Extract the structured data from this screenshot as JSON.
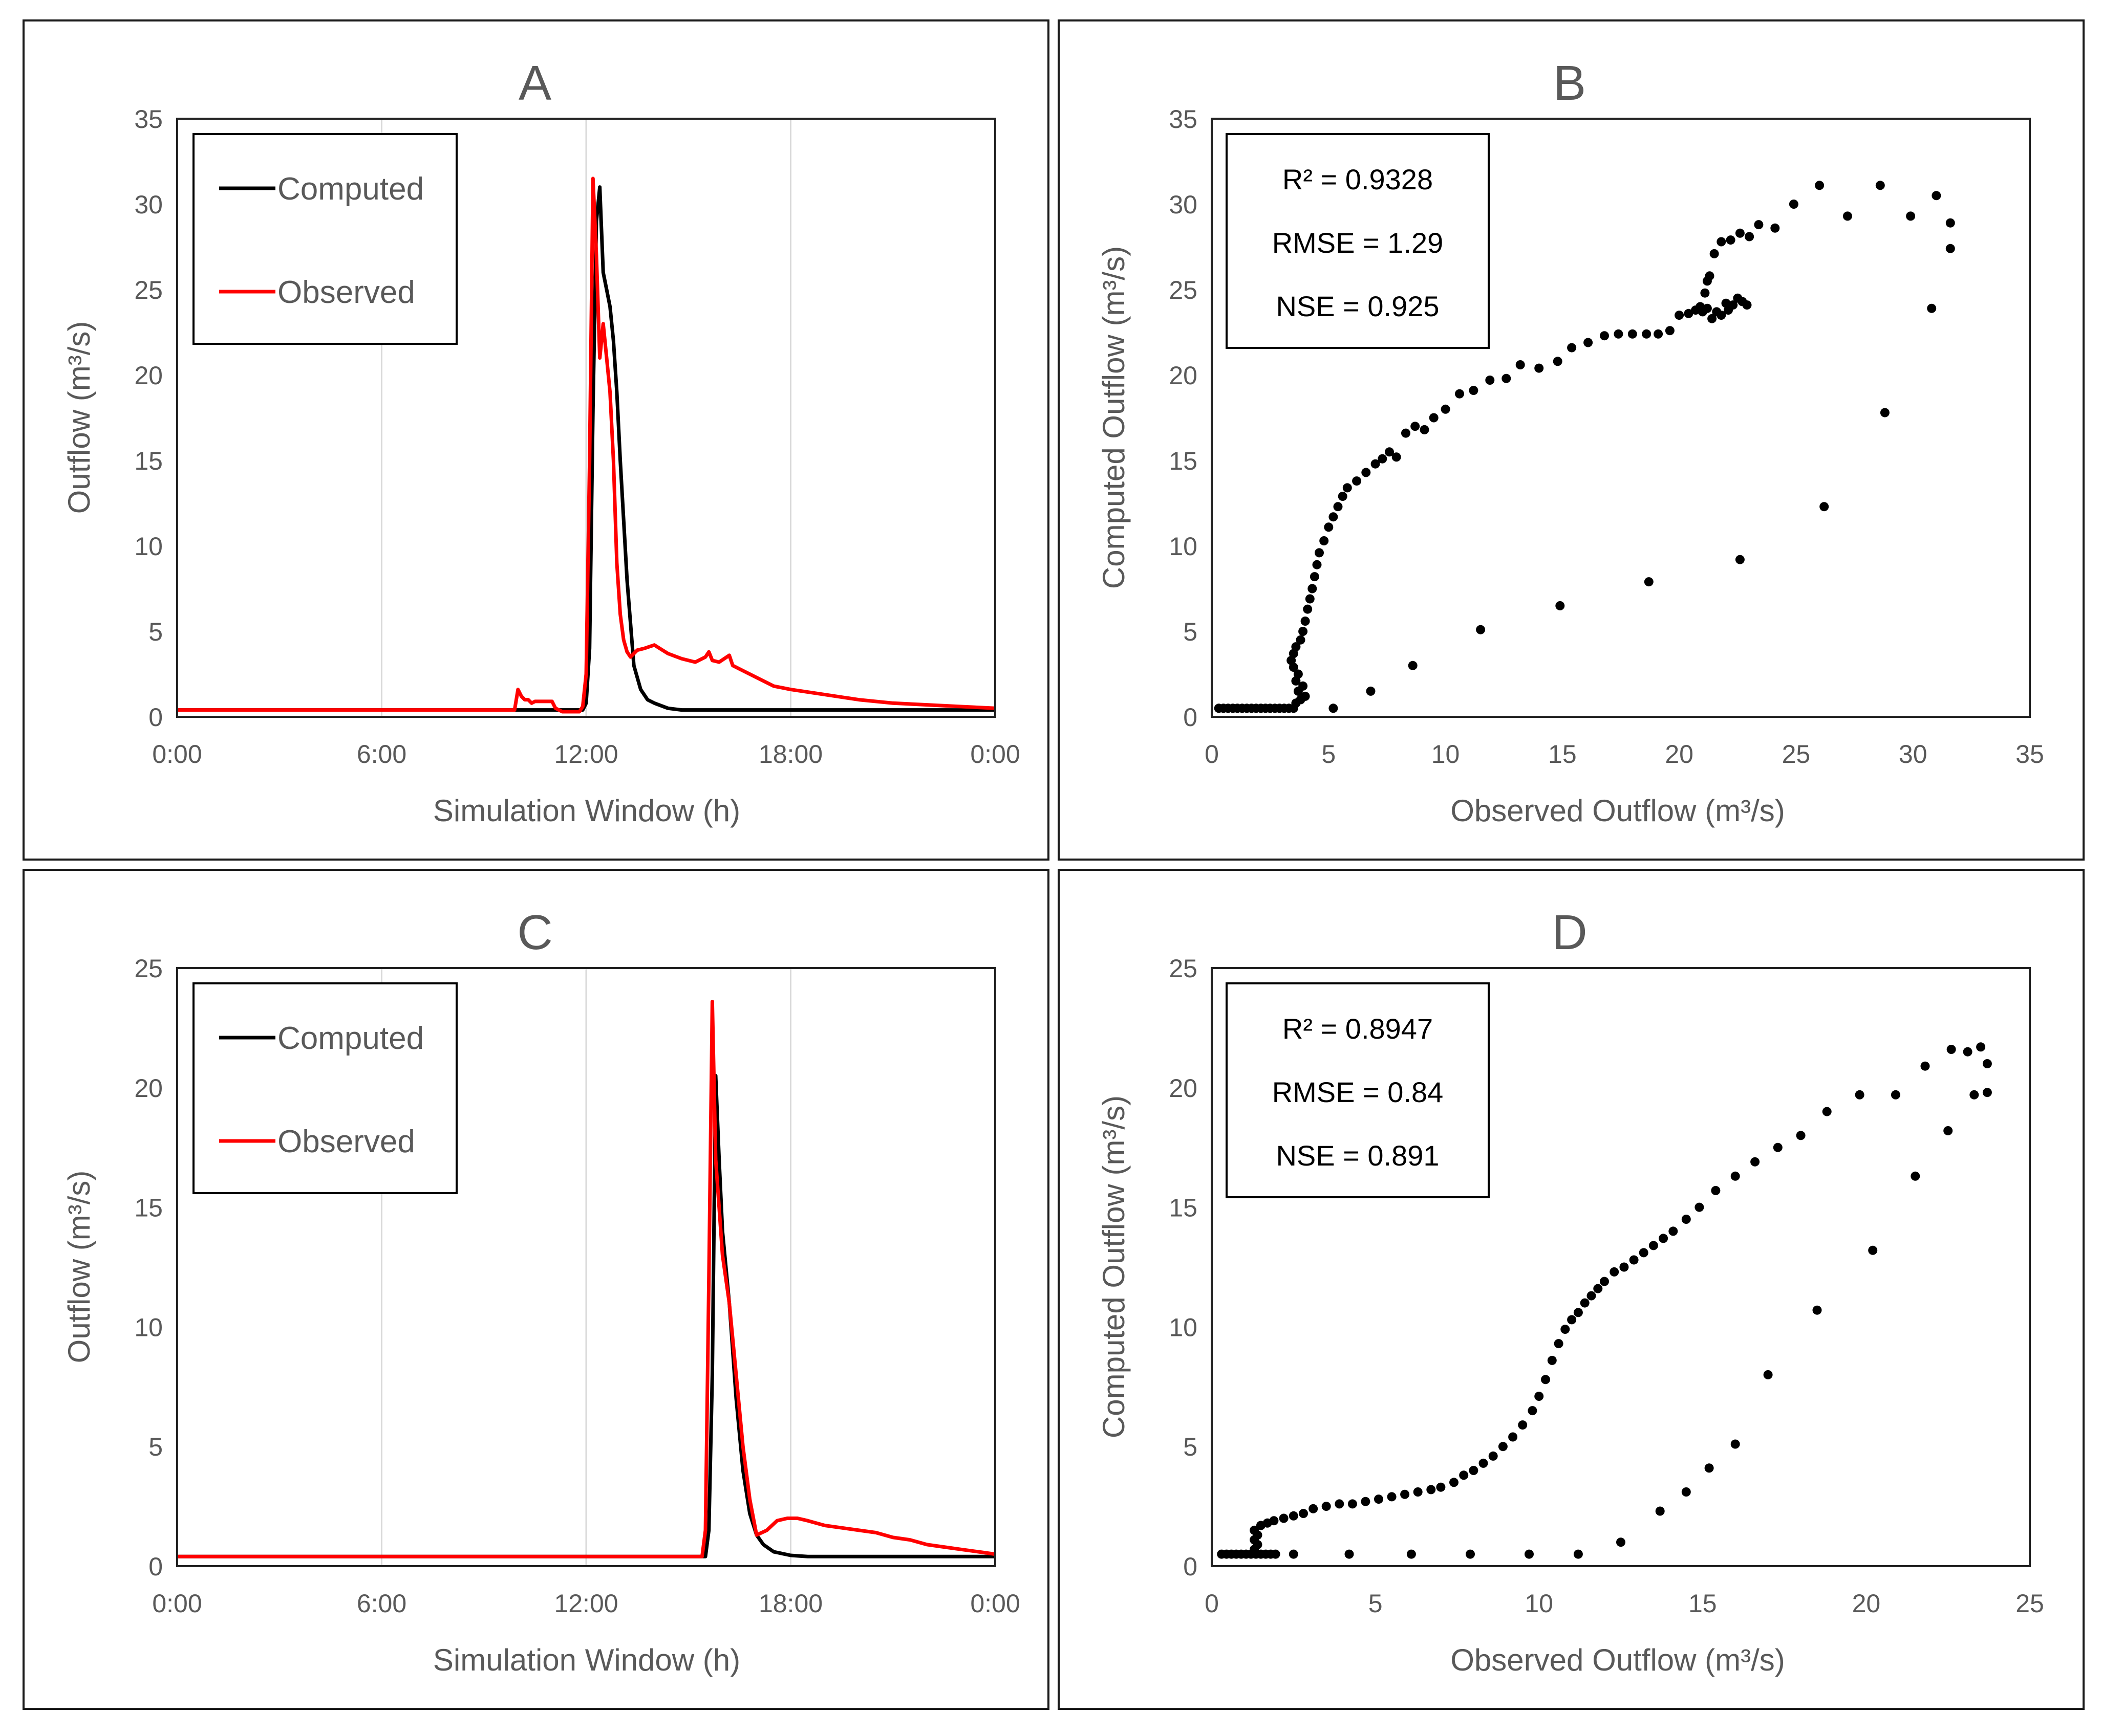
{
  "chart_data": [
    {
      "id": "A",
      "type": "line",
      "title": "A",
      "xlabel": "Simulation Window (h)",
      "ylabel": "Outflow (m³/s)",
      "xlim": [
        0,
        24
      ],
      "ylim": [
        0,
        35
      ],
      "x_ticks": [
        0,
        6,
        12,
        18,
        24
      ],
      "x_tick_labels": [
        "0:00",
        "6:00",
        "12:00",
        "18:00",
        "0:00"
      ],
      "y_ticks": [
        0,
        5,
        10,
        15,
        20,
        25,
        30,
        35
      ],
      "y_tick_labels": [
        "0",
        "5",
        "10",
        "15",
        "20",
        "25",
        "30",
        "35"
      ],
      "legend": "top-left",
      "series": [
        {
          "name": "Computed",
          "color": "#000000",
          "x": [
            0,
            11.9,
            12.0,
            12.1,
            12.2,
            12.3,
            12.4,
            12.5,
            12.6,
            12.7,
            12.8,
            12.9,
            13.0,
            13.2,
            13.4,
            13.6,
            13.8,
            14.0,
            14.4,
            14.8,
            15.2,
            15.6,
            24
          ],
          "y": [
            0.4,
            0.4,
            0.8,
            4,
            18,
            29,
            31,
            26,
            25,
            24,
            22,
            19,
            15,
            8,
            3,
            1.6,
            1.0,
            0.8,
            0.5,
            0.4,
            0.4,
            0.4,
            0.4
          ]
        },
        {
          "name": "Observed",
          "color": "#ff0000",
          "x": [
            0,
            9.9,
            10.0,
            10.1,
            10.2,
            10.3,
            10.4,
            10.5,
            11.0,
            11.1,
            11.3,
            11.8,
            11.9,
            12.0,
            12.1,
            12.2,
            12.3,
            12.4,
            12.5,
            12.6,
            12.7,
            12.8,
            12.9,
            13.0,
            13.1,
            13.2,
            13.3,
            13.5,
            13.7,
            14.0,
            14.4,
            14.8,
            15.2,
            15.5,
            15.6,
            15.7,
            15.9,
            16.2,
            16.3,
            16.5,
            17.0,
            17.5,
            18.0,
            19.0,
            20.0,
            21.0,
            22.0,
            23.0,
            24.0
          ],
          "y": [
            0.4,
            0.4,
            1.6,
            1.2,
            1.0,
            1.0,
            0.8,
            0.9,
            0.9,
            0.5,
            0.3,
            0.3,
            0.6,
            2.5,
            15,
            31.5,
            27,
            21,
            23,
            21,
            19,
            15,
            9,
            6,
            4.5,
            3.8,
            3.5,
            3.9,
            4.0,
            4.2,
            3.7,
            3.4,
            3.2,
            3.5,
            3.8,
            3.3,
            3.2,
            3.6,
            3.0,
            2.8,
            2.3,
            1.8,
            1.6,
            1.3,
            1.0,
            0.8,
            0.7,
            0.6,
            0.5
          ]
        }
      ]
    },
    {
      "id": "B",
      "type": "scatter",
      "title": "B",
      "xlabel": "Observed Outflow (m³/s)",
      "ylabel": "Computed Outflow (m³/s)",
      "xlim": [
        0,
        35
      ],
      "ylim": [
        0,
        35
      ],
      "x_ticks": [
        0,
        5,
        10,
        15,
        20,
        25,
        30,
        35
      ],
      "x_tick_labels": [
        "0",
        "5",
        "10",
        "15",
        "20",
        "25",
        "30",
        "35"
      ],
      "y_ticks": [
        0,
        5,
        10,
        15,
        20,
        25,
        30,
        35
      ],
      "y_tick_labels": [
        "0",
        "5",
        "10",
        "15",
        "20",
        "25",
        "30",
        "35"
      ],
      "stats": [
        "R² = 0.9328",
        "RMSE = 1.29",
        "NSE = 0.925"
      ],
      "points": [
        [
          0.3,
          0.5
        ],
        [
          0.5,
          0.5
        ],
        [
          0.7,
          0.5
        ],
        [
          0.9,
          0.5
        ],
        [
          1.1,
          0.5
        ],
        [
          1.3,
          0.5
        ],
        [
          1.5,
          0.5
        ],
        [
          1.7,
          0.5
        ],
        [
          1.9,
          0.5
        ],
        [
          2.1,
          0.5
        ],
        [
          2.3,
          0.5
        ],
        [
          2.5,
          0.5
        ],
        [
          2.7,
          0.5
        ],
        [
          2.9,
          0.5
        ],
        [
          3.1,
          0.5
        ],
        [
          3.3,
          0.5
        ],
        [
          3.5,
          0.5
        ],
        [
          3.6,
          0.8
        ],
        [
          3.8,
          1.0
        ],
        [
          4.0,
          1.2
        ],
        [
          3.7,
          1.5
        ],
        [
          3.9,
          1.8
        ],
        [
          3.6,
          2.1
        ],
        [
          3.7,
          2.5
        ],
        [
          3.5,
          2.9
        ],
        [
          3.4,
          3.3
        ],
        [
          3.5,
          3.7
        ],
        [
          3.6,
          4.1
        ],
        [
          3.8,
          4.5
        ],
        [
          3.9,
          5.0
        ],
        [
          4.0,
          5.6
        ],
        [
          4.1,
          6.3
        ],
        [
          4.2,
          6.9
        ],
        [
          4.3,
          7.5
        ],
        [
          4.4,
          8.2
        ],
        [
          4.5,
          8.9
        ],
        [
          4.6,
          9.6
        ],
        [
          4.8,
          10.3
        ],
        [
          5.0,
          11.1
        ],
        [
          5.2,
          11.7
        ],
        [
          5.4,
          12.3
        ],
        [
          5.6,
          12.9
        ],
        [
          5.8,
          13.4
        ],
        [
          6.2,
          13.8
        ],
        [
          6.6,
          14.3
        ],
        [
          7.0,
          14.8
        ],
        [
          7.3,
          15.1
        ],
        [
          7.6,
          15.5
        ],
        [
          7.9,
          15.2
        ],
        [
          8.3,
          16.6
        ],
        [
          8.7,
          17.0
        ],
        [
          9.1,
          16.8
        ],
        [
          9.5,
          17.5
        ],
        [
          10.0,
          18.0
        ],
        [
          10.6,
          18.9
        ],
        [
          11.2,
          19.1
        ],
        [
          11.9,
          19.7
        ],
        [
          12.6,
          19.8
        ],
        [
          13.2,
          20.6
        ],
        [
          14.0,
          20.4
        ],
        [
          14.8,
          20.8
        ],
        [
          15.4,
          21.6
        ],
        [
          16.1,
          21.9
        ],
        [
          16.8,
          22.3
        ],
        [
          17.4,
          22.4
        ],
        [
          18.0,
          22.4
        ],
        [
          18.6,
          22.4
        ],
        [
          19.1,
          22.4
        ],
        [
          19.6,
          22.6
        ],
        [
          20.0,
          23.5
        ],
        [
          20.4,
          23.6
        ],
        [
          20.7,
          23.8
        ],
        [
          20.9,
          24.0
        ],
        [
          21.0,
          23.7
        ],
        [
          21.2,
          23.9
        ],
        [
          21.4,
          23.3
        ],
        [
          21.6,
          23.7
        ],
        [
          21.8,
          23.5
        ],
        [
          22.0,
          24.2
        ],
        [
          22.1,
          23.8
        ],
        [
          22.3,
          24.1
        ],
        [
          22.5,
          24.5
        ],
        [
          22.7,
          24.3
        ],
        [
          22.9,
          24.1
        ],
        [
          21.1,
          24.8
        ],
        [
          21.2,
          25.5
        ],
        [
          21.3,
          25.8
        ],
        [
          21.5,
          27.1
        ],
        [
          21.8,
          27.8
        ],
        [
          22.2,
          27.9
        ],
        [
          22.6,
          28.3
        ],
        [
          23.0,
          28.1
        ],
        [
          23.4,
          28.8
        ],
        [
          24.1,
          28.6
        ],
        [
          24.9,
          30.0
        ],
        [
          26.0,
          31.1
        ],
        [
          27.2,
          29.3
        ],
        [
          28.6,
          31.1
        ],
        [
          29.9,
          29.3
        ],
        [
          31.0,
          30.5
        ],
        [
          31.6,
          28.9
        ],
        [
          31.6,
          27.4
        ],
        [
          30.8,
          23.9
        ],
        [
          28.8,
          17.8
        ],
        [
          26.2,
          12.3
        ],
        [
          22.6,
          9.2
        ],
        [
          18.7,
          7.9
        ],
        [
          14.9,
          6.5
        ],
        [
          11.5,
          5.1
        ],
        [
          8.6,
          3.0
        ],
        [
          6.8,
          1.5
        ],
        [
          5.2,
          0.5
        ]
      ]
    },
    {
      "id": "C",
      "type": "line",
      "title": "C",
      "xlabel": "Simulation Window (h)",
      "ylabel": "Outflow (m³/s)",
      "xlim": [
        0,
        24
      ],
      "ylim": [
        0,
        25
      ],
      "x_ticks": [
        0,
        6,
        12,
        18,
        24
      ],
      "x_tick_labels": [
        "0:00",
        "6:00",
        "12:00",
        "18:00",
        "0:00"
      ],
      "y_ticks": [
        0,
        5,
        10,
        15,
        20,
        25
      ],
      "y_tick_labels": [
        "0",
        "5",
        "10",
        "15",
        "20",
        "25"
      ],
      "legend": "top-left",
      "series": [
        {
          "name": "Computed",
          "color": "#000000",
          "x": [
            0,
            15.5,
            15.6,
            15.7,
            15.8,
            15.9,
            16.0,
            16.2,
            16.4,
            16.6,
            16.8,
            17.0,
            17.2,
            17.5,
            18.0,
            18.5,
            24
          ],
          "y": [
            0.4,
            0.4,
            1.5,
            8,
            20.5,
            17,
            14,
            11,
            7,
            4,
            2.2,
            1.3,
            0.9,
            0.6,
            0.45,
            0.4,
            0.4
          ]
        },
        {
          "name": "Observed",
          "color": "#ff0000",
          "x": [
            0,
            15.4,
            15.5,
            15.6,
            15.7,
            15.8,
            15.9,
            16.0,
            16.2,
            16.4,
            16.6,
            16.8,
            17.0,
            17.3,
            17.6,
            17.9,
            18.2,
            18.5,
            19.0,
            19.5,
            20.0,
            20.5,
            21.0,
            21.5,
            22.0,
            22.5,
            23.0,
            23.5,
            24.0
          ],
          "y": [
            0.4,
            0.4,
            1.5,
            12,
            23.6,
            17,
            15,
            13,
            11,
            8,
            5,
            2.8,
            1.3,
            1.5,
            1.9,
            2.0,
            2.0,
            1.9,
            1.7,
            1.6,
            1.5,
            1.4,
            1.2,
            1.1,
            0.9,
            0.8,
            0.7,
            0.6,
            0.5
          ]
        }
      ]
    },
    {
      "id": "D",
      "type": "scatter",
      "title": "D",
      "xlabel": "Observed Outflow (m³/s)",
      "ylabel": "Computed Outflow (m³/s)",
      "xlim": [
        0,
        25
      ],
      "ylim": [
        0,
        25
      ],
      "x_ticks": [
        0,
        5,
        10,
        15,
        20,
        25
      ],
      "x_tick_labels": [
        "0",
        "5",
        "10",
        "15",
        "20",
        "25"
      ],
      "y_ticks": [
        0,
        5,
        10,
        15,
        20,
        25
      ],
      "y_tick_labels": [
        "0",
        "5",
        "10",
        "15",
        "20",
        "25"
      ],
      "stats": [
        "R² = 0.8947",
        "RMSE = 0.84",
        "NSE = 0.891"
      ],
      "points": [
        [
          0.3,
          0.5
        ],
        [
          0.45,
          0.5
        ],
        [
          0.6,
          0.5
        ],
        [
          0.75,
          0.5
        ],
        [
          0.9,
          0.5
        ],
        [
          1.05,
          0.5
        ],
        [
          1.2,
          0.5
        ],
        [
          1.35,
          0.5
        ],
        [
          1.5,
          0.5
        ],
        [
          1.65,
          0.5
        ],
        [
          1.8,
          0.5
        ],
        [
          1.95,
          0.5
        ],
        [
          1.3,
          0.7
        ],
        [
          1.4,
          0.9
        ],
        [
          1.3,
          1.1
        ],
        [
          1.4,
          1.3
        ],
        [
          1.3,
          1.5
        ],
        [
          1.5,
          1.7
        ],
        [
          1.7,
          1.8
        ],
        [
          1.9,
          1.9
        ],
        [
          2.2,
          2.0
        ],
        [
          2.5,
          2.1
        ],
        [
          2.8,
          2.2
        ],
        [
          3.1,
          2.4
        ],
        [
          3.5,
          2.5
        ],
        [
          3.9,
          2.6
        ],
        [
          4.3,
          2.6
        ],
        [
          4.7,
          2.7
        ],
        [
          5.1,
          2.8
        ],
        [
          5.5,
          2.9
        ],
        [
          5.9,
          3.0
        ],
        [
          6.3,
          3.1
        ],
        [
          6.7,
          3.2
        ],
        [
          7.0,
          3.3
        ],
        [
          7.4,
          3.5
        ],
        [
          7.7,
          3.8
        ],
        [
          8.0,
          4.0
        ],
        [
          8.3,
          4.3
        ],
        [
          8.6,
          4.6
        ],
        [
          8.9,
          5.0
        ],
        [
          9.2,
          5.4
        ],
        [
          9.5,
          5.9
        ],
        [
          9.8,
          6.5
        ],
        [
          10.0,
          7.1
        ],
        [
          10.2,
          7.8
        ],
        [
          10.4,
          8.6
        ],
        [
          10.6,
          9.3
        ],
        [
          10.8,
          9.9
        ],
        [
          11.0,
          10.3
        ],
        [
          11.2,
          10.6
        ],
        [
          11.4,
          11.0
        ],
        [
          11.6,
          11.3
        ],
        [
          11.8,
          11.6
        ],
        [
          12.0,
          11.9
        ],
        [
          12.3,
          12.3
        ],
        [
          12.6,
          12.5
        ],
        [
          12.9,
          12.8
        ],
        [
          13.2,
          13.1
        ],
        [
          13.5,
          13.4
        ],
        [
          13.8,
          13.7
        ],
        [
          14.1,
          14.0
        ],
        [
          14.5,
          14.5
        ],
        [
          14.9,
          15.0
        ],
        [
          15.4,
          15.7
        ],
        [
          16.0,
          16.3
        ],
        [
          16.6,
          16.9
        ],
        [
          17.3,
          17.5
        ],
        [
          18.0,
          18.0
        ],
        [
          18.8,
          19.0
        ],
        [
          19.8,
          19.7
        ],
        [
          20.9,
          19.7
        ],
        [
          21.8,
          20.9
        ],
        [
          22.6,
          21.6
        ],
        [
          23.1,
          21.5
        ],
        [
          23.5,
          21.7
        ],
        [
          23.7,
          21.0
        ],
        [
          23.7,
          19.8
        ],
        [
          23.3,
          19.7
        ],
        [
          22.5,
          18.2
        ],
        [
          21.5,
          16.3
        ],
        [
          20.2,
          13.2
        ],
        [
          18.5,
          10.7
        ],
        [
          17.0,
          8.0
        ],
        [
          16.0,
          5.1
        ],
        [
          15.2,
          4.1
        ],
        [
          14.5,
          3.1
        ],
        [
          13.7,
          2.3
        ],
        [
          12.5,
          1.0
        ],
        [
          11.2,
          0.5
        ],
        [
          9.7,
          0.5
        ],
        [
          7.9,
          0.5
        ],
        [
          6.1,
          0.5
        ],
        [
          4.2,
          0.5
        ],
        [
          2.5,
          0.5
        ]
      ]
    }
  ]
}
